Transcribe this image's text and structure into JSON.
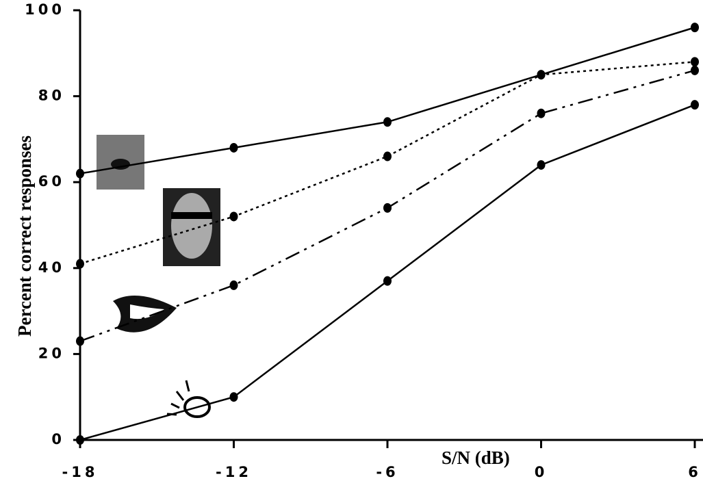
{
  "chart_data": {
    "type": "line",
    "x_label": "S/N (dB)",
    "y_label": "Percent correct responses",
    "x": [
      -18,
      -12,
      -6,
      0,
      6
    ],
    "xlim": [
      -18,
      6
    ],
    "xticks": [
      -18,
      -12,
      -6,
      0,
      6
    ],
    "ylim": [
      0,
      100
    ],
    "yticks": [
      0,
      20,
      40,
      60,
      80,
      100
    ],
    "series": [
      {
        "color": "#000000",
        "dash": "solid",
        "values": [
          62,
          68,
          74,
          85,
          96
        ]
      },
      {
        "color": "#000000",
        "dash": "dotted",
        "values": [
          41,
          52,
          66,
          85,
          88
        ]
      },
      {
        "color": "#000000",
        "dash": "dashdot",
        "values": [
          23,
          36,
          54,
          76,
          86
        ]
      },
      {
        "color": "#000000",
        "dash": "solid",
        "values": [
          0,
          10,
          37,
          64,
          78
        ]
      }
    ]
  }
}
